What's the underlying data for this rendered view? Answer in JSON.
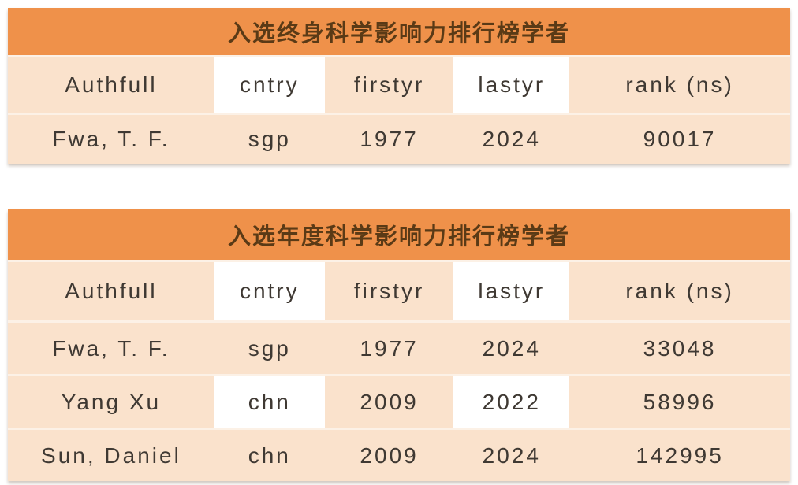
{
  "colors": {
    "accent_orange": "#EF914A",
    "row_peach": "#FAE2CC",
    "separator": "#FCF1E6",
    "highlight_cell": "#FFFFFF",
    "title_text": "#5A3A16",
    "body_text": "#3F3933"
  },
  "tables": [
    {
      "title": "入选终身科学影响力排行榜学者",
      "columns": [
        "Authfull",
        "cntry",
        "firstyr",
        "lastyr",
        "rank (ns)"
      ],
      "header_highlight": [
        1,
        3
      ],
      "rows": [
        {
          "cells": [
            "Fwa, T. F.",
            "sgp",
            "1977",
            "2024",
            "90017"
          ],
          "highlight": []
        }
      ]
    },
    {
      "title": "入选年度科学影响力排行榜学者",
      "columns": [
        "Authfull",
        "cntry",
        "firstyr",
        "lastyr",
        "rank (ns)"
      ],
      "header_highlight": [
        1,
        3
      ],
      "rows": [
        {
          "cells": [
            "Fwa, T. F.",
            "sgp",
            "1977",
            "2024",
            "33048"
          ],
          "highlight": []
        },
        {
          "cells": [
            "Yang Xu",
            "chn",
            "2009",
            "2022",
            "58996"
          ],
          "highlight": [
            1,
            3
          ]
        },
        {
          "cells": [
            "Sun, Daniel",
            "chn",
            "2009",
            "2024",
            "142995"
          ],
          "highlight": []
        }
      ]
    }
  ]
}
